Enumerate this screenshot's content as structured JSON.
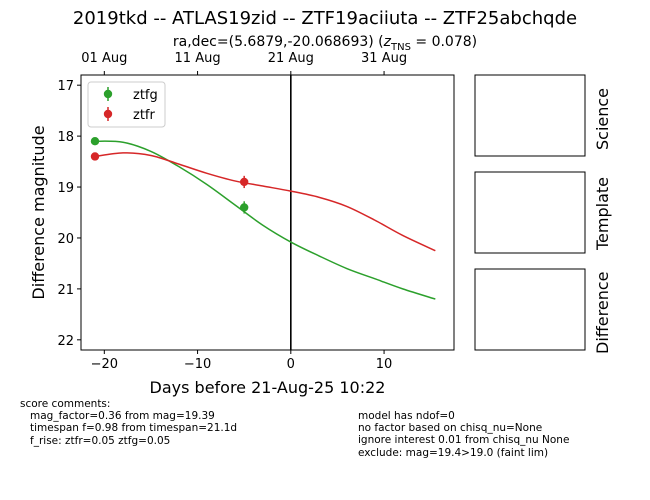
{
  "title": "2019tkd -- ATLAS19zid -- ZTF19aciiuta -- ZTF25abchqde",
  "subtitle_prefix": "ra,dec=(5.6879,-20.068693) (",
  "subtitle_z_label": "z",
  "subtitle_z_sub": "TNS",
  "subtitle_suffix": " = 0.078)",
  "panels": {
    "science": "Science",
    "template": "Template",
    "difference": "Difference"
  },
  "comments_left": [
    "score comments:",
    "   mag_factor=0.36 from mag=19.39",
    "   timespan f=0.98 from timespan=21.1d",
    "   f_rise: ztfr=0.05 ztfg=0.05"
  ],
  "comments_right": [
    "model has ndof=0",
    "no factor based on chisq_nu=None",
    "ignore interest 0.01 from chisq_nu None",
    "exclude: mag=19.4>19.0 (faint lim)"
  ],
  "chart_data": {
    "type": "scatter",
    "xlabel": "Days before 21-Aug-25 10:22",
    "ylabel": "Difference magnitude",
    "xlim": [
      -22.5,
      17.5
    ],
    "ylim": [
      22.2,
      16.8
    ],
    "y_inverted": true,
    "xticks": [
      -20,
      -10,
      0,
      10
    ],
    "yticks": [
      17,
      18,
      19,
      20,
      21,
      22
    ],
    "top_axis_ticks": [
      {
        "x": -20,
        "label": "01 Aug"
      },
      {
        "x": -10,
        "label": "11 Aug"
      },
      {
        "x": 0,
        "label": "21 Aug"
      },
      {
        "x": 10,
        "label": "31 Aug"
      }
    ],
    "vline_x": 0,
    "legend": "top-left",
    "series": [
      {
        "name": "ztfg",
        "color": "#2ca02c",
        "points": [
          {
            "x": -21,
            "y": 18.1,
            "err": 0.05
          },
          {
            "x": -5,
            "y": 19.4,
            "err": 0.12
          }
        ],
        "model": [
          [
            -21,
            18.1
          ],
          [
            -18,
            18.12
          ],
          [
            -15,
            18.3
          ],
          [
            -12,
            18.6
          ],
          [
            -9,
            18.95
          ],
          [
            -6,
            19.35
          ],
          [
            -3,
            19.75
          ],
          [
            0,
            20.08
          ],
          [
            3,
            20.35
          ],
          [
            6,
            20.6
          ],
          [
            9,
            20.8
          ],
          [
            12,
            21.0
          ],
          [
            15.5,
            21.2
          ]
        ]
      },
      {
        "name": "ztfr",
        "color": "#d62728",
        "points": [
          {
            "x": -21,
            "y": 18.4,
            "err": 0.05
          },
          {
            "x": -5,
            "y": 18.9,
            "err": 0.12
          }
        ],
        "model": [
          [
            -21,
            18.4
          ],
          [
            -18,
            18.33
          ],
          [
            -15,
            18.38
          ],
          [
            -12,
            18.55
          ],
          [
            -9,
            18.73
          ],
          [
            -6,
            18.88
          ],
          [
            -3,
            18.98
          ],
          [
            0,
            19.08
          ],
          [
            3,
            19.2
          ],
          [
            6,
            19.38
          ],
          [
            9,
            19.65
          ],
          [
            12,
            19.95
          ],
          [
            15.5,
            20.25
          ]
        ]
      }
    ]
  }
}
